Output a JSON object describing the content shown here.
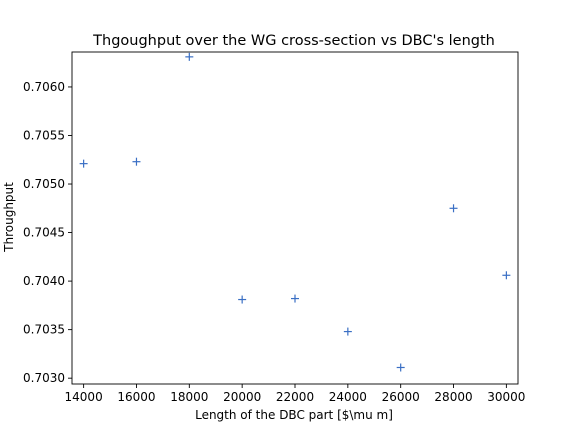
{
  "chart_data": {
    "type": "scatter",
    "title": "Thgoughput over the WG cross-section vs DBC's length",
    "xlabel": "Length of the DBC part [$\\mu m]",
    "ylabel": "Throughput",
    "marker": "+",
    "color": "#3a6fc4",
    "grid": false,
    "xlim": [
      13560,
      30440
    ],
    "ylim": [
      0.70294,
      0.70636
    ],
    "xticks": [
      14000,
      16000,
      18000,
      20000,
      22000,
      24000,
      26000,
      28000,
      30000
    ],
    "xtick_labels": [
      "14000",
      "16000",
      "18000",
      "20000",
      "22000",
      "24000",
      "26000",
      "28000",
      "30000"
    ],
    "yticks": [
      0.703,
      0.7035,
      0.704,
      0.7045,
      0.705,
      0.7055,
      0.706
    ],
    "ytick_labels": [
      "0.7030",
      "0.7035",
      "0.7040",
      "0.7045",
      "0.7050",
      "0.7055",
      "0.7060"
    ],
    "points": [
      {
        "x": 14000,
        "y": 0.70521
      },
      {
        "x": 16000,
        "y": 0.70523
      },
      {
        "x": 18000,
        "y": 0.70631
      },
      {
        "x": 20000,
        "y": 0.70381
      },
      {
        "x": 22000,
        "y": 0.70382
      },
      {
        "x": 24000,
        "y": 0.70348
      },
      {
        "x": 26000,
        "y": 0.70311
      },
      {
        "x": 28000,
        "y": 0.70475
      },
      {
        "x": 30000,
        "y": 0.70406
      }
    ]
  }
}
